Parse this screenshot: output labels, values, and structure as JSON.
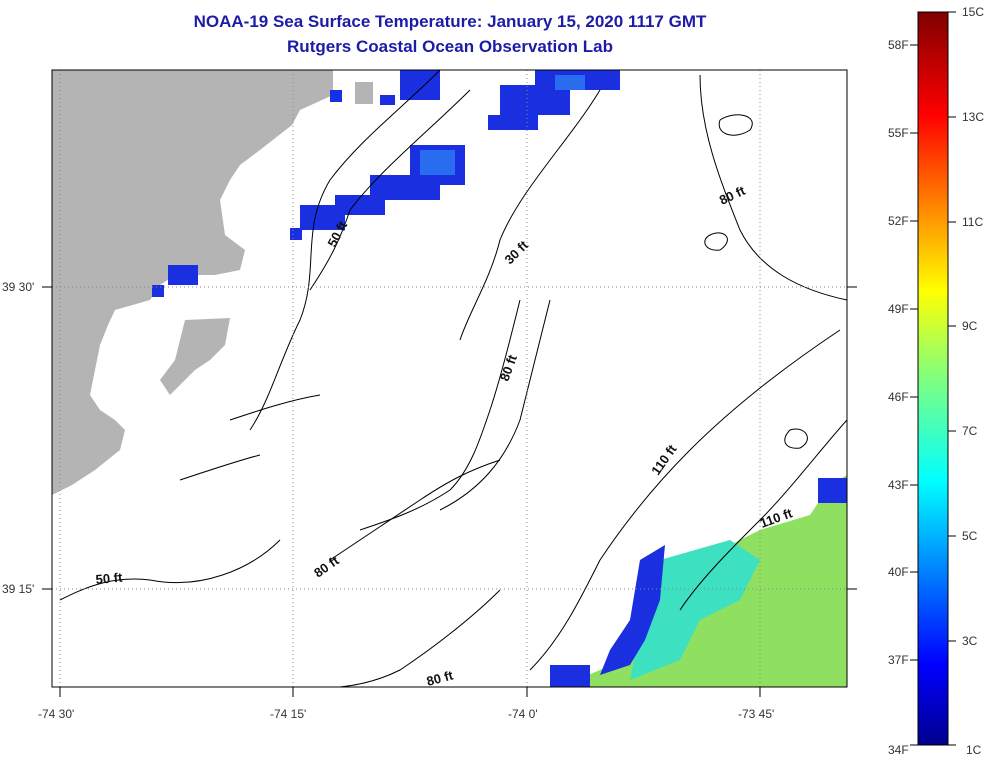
{
  "title": {
    "line1": "NOAA-19 Sea Surface Temperature:  January 15, 2020 1117 GMT",
    "line2": "Rutgers Coastal Ocean Observation Lab"
  },
  "axes": {
    "x_ticks": [
      "-74 30'",
      "-74 15'",
      "-74 0'",
      "-73 45'"
    ],
    "y_ticks": [
      "39 30'",
      "39 15'"
    ]
  },
  "contour_labels": [
    "50 ft",
    "30 ft",
    "80 ft",
    "80 ft",
    "110 ft",
    "110 ft",
    "80 ft",
    "50 ft",
    "80 ft"
  ],
  "colorbar": {
    "fahrenheit": [
      "58F",
      "55F",
      "52F",
      "49F",
      "46F",
      "43F",
      "40F",
      "37F",
      "34F"
    ],
    "celsius": [
      "15C",
      "13C",
      "11C",
      "9C",
      "7C",
      "5C",
      "3C",
      "1C"
    ]
  },
  "colors": {
    "title": "#1c1ca8",
    "land": "#b4b4b4",
    "ocean_bg": "#ffffff",
    "cold": "#1a2fe0",
    "warm": "#8fe060"
  }
}
